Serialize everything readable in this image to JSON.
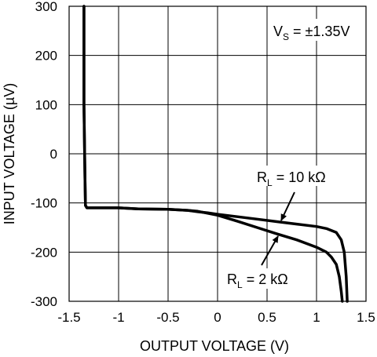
{
  "chart_data": {
    "type": "line",
    "xlabel": "OUTPUT VOLTAGE (V)",
    "ylabel": "INPUT VOLTAGE (µV)",
    "xlim": [
      -1.5,
      1.5
    ],
    "ylim": [
      -300,
      300
    ],
    "x_ticks": [
      -1.5,
      -1,
      -0.5,
      0,
      0.5,
      1,
      1.5
    ],
    "x_tick_labels": [
      "-1.5",
      "-1",
      "-0.5",
      "0",
      "0.5",
      "1",
      "1.5"
    ],
    "y_ticks": [
      -300,
      -200,
      -100,
      0,
      100,
      200,
      300
    ],
    "y_tick_labels": [
      "-300",
      "-200",
      "-100",
      "0",
      "100",
      "200",
      "300"
    ],
    "grid": true,
    "series": [
      {
        "name": "RL = 10 kΩ",
        "x": [
          -1.35,
          -1.35,
          -1.345,
          -1.34,
          -1.335,
          -1.32,
          -1.2,
          -1.0,
          -0.8,
          -0.5,
          -0.3,
          -0.2,
          -0.1,
          0.0,
          0.2,
          0.4,
          0.6,
          0.8,
          1.0,
          1.1,
          1.2,
          1.25,
          1.28,
          1.3,
          1.31
        ],
        "y": [
          300,
          100,
          30,
          -50,
          -105,
          -110,
          -110,
          -110,
          -112,
          -113,
          -115,
          -118,
          -120,
          -123,
          -128,
          -133,
          -138,
          -143,
          -148,
          -152,
          -160,
          -175,
          -200,
          -250,
          -300
        ]
      },
      {
        "name": "RL = 2 kΩ",
        "x": [
          -1.35,
          -1.35,
          -1.345,
          -1.34,
          -1.335,
          -1.32,
          -1.2,
          -1.0,
          -0.8,
          -0.5,
          -0.3,
          -0.2,
          -0.1,
          0.0,
          0.2,
          0.4,
          0.6,
          0.8,
          1.0,
          1.1,
          1.15,
          1.2,
          1.23,
          1.25,
          1.26
        ],
        "y": [
          300,
          100,
          30,
          -50,
          -105,
          -110,
          -110,
          -110,
          -112,
          -113,
          -115,
          -117,
          -121,
          -125,
          -137,
          -150,
          -163,
          -175,
          -190,
          -200,
          -210,
          -225,
          -250,
          -280,
          -300
        ]
      }
    ],
    "annotations": {
      "supply": {
        "main": "V",
        "sub": "S",
        "rest": " = ±1.35V"
      },
      "rl_10k": {
        "main": "R",
        "sub": "L",
        "rest": " = 10 kΩ"
      },
      "rl_2k": {
        "main": "R",
        "sub": "L",
        "rest": " = 2 kΩ"
      }
    }
  }
}
